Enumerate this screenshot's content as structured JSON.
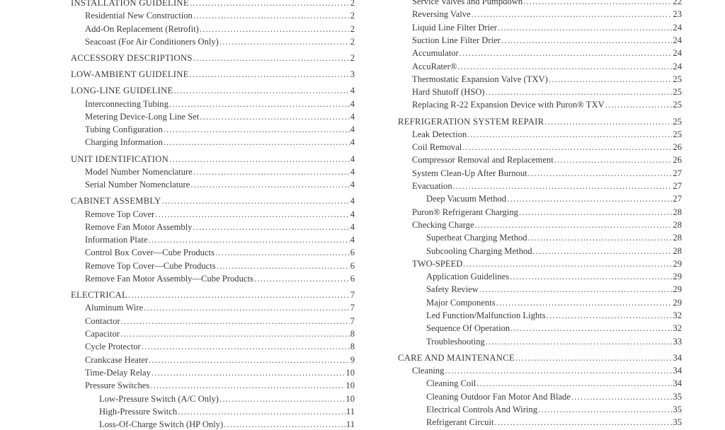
{
  "toc": {
    "left": [
      {
        "level": 1,
        "title": "INSTALLATION GUIDELINE",
        "page": "2"
      },
      {
        "level": 2,
        "title": "Residential New Construction",
        "page": "2"
      },
      {
        "level": 2,
        "title": "Add-On Replacement (Retrofit)",
        "page": "2"
      },
      {
        "level": 2,
        "title": "Seacoast (For Air Conditioners Only)",
        "page": "2"
      },
      {
        "level": 1,
        "title": "ACCESSORY DESCRIPTIONS",
        "page": "2"
      },
      {
        "level": 1,
        "title": "LOW-AMBIENT GUIDELINE",
        "page": "3"
      },
      {
        "level": 1,
        "title": "LONG-LINE GUIDELINE",
        "page": "4"
      },
      {
        "level": 2,
        "title": "Interconnecting Tubing",
        "page": "4"
      },
      {
        "level": 2,
        "title": "Metering Device-Long Line Set",
        "page": "4"
      },
      {
        "level": 2,
        "title": "Tubing Configuration",
        "page": "4"
      },
      {
        "level": 2,
        "title": "Charging Information",
        "page": "4"
      },
      {
        "level": 1,
        "title": "UNIT IDENTIFICATION",
        "page": "4"
      },
      {
        "level": 2,
        "title": "Model Number Nomenclature",
        "page": "4"
      },
      {
        "level": 2,
        "title": "Serial Number Nomenclature",
        "page": "4"
      },
      {
        "level": 1,
        "title": "CABINET ASSEMBLY",
        "page": "4"
      },
      {
        "level": 2,
        "title": "Remove Top Cover",
        "page": "4"
      },
      {
        "level": 2,
        "title": "Remove Fan Motor Assembly",
        "page": "4"
      },
      {
        "level": 2,
        "title": "Information Plate",
        "page": "4"
      },
      {
        "level": 2,
        "title": "Control Box Cover—Cube Products",
        "page": "6"
      },
      {
        "level": 2,
        "title": "Remove Top Cover—Cube Products",
        "page": "6"
      },
      {
        "level": 2,
        "title": "Remove Fan Motor Assembly—Cube Products",
        "page": "6"
      },
      {
        "level": 1,
        "title": "ELECTRICAL",
        "page": "7"
      },
      {
        "level": 2,
        "title": "Aluminum Wire",
        "page": "7"
      },
      {
        "level": 2,
        "title": "Contactor",
        "page": "7"
      },
      {
        "level": 2,
        "title": "Capacitor",
        "page": "8"
      },
      {
        "level": 2,
        "title": "Cycle Protector",
        "page": "8"
      },
      {
        "level": 2,
        "title": "Crankcase Heater",
        "page": "9"
      },
      {
        "level": 2,
        "title": "Time-Delay Relay",
        "page": "10"
      },
      {
        "level": 2,
        "title": "Pressure Switches",
        "page": "10"
      },
      {
        "level": 3,
        "title": "Low-Pressure Switch (A/C Only)",
        "page": "10"
      },
      {
        "level": 3,
        "title": "High-Pressure Switch",
        "page": "11"
      },
      {
        "level": 3,
        "title": "Loss-Of-Charge Switch (HP Only)",
        "page": "11"
      }
    ],
    "right": [
      {
        "level": 2,
        "title": "Service Valves and Pumpdown",
        "page": "22"
      },
      {
        "level": 2,
        "title": "Reversing Valve",
        "page": "23"
      },
      {
        "level": 2,
        "title": "Liquid Line Filter Drier",
        "page": "24"
      },
      {
        "level": 2,
        "title": "Suction Line Filter Drier",
        "page": "24"
      },
      {
        "level": 2,
        "title": "Accumulator",
        "page": "24"
      },
      {
        "level": 2,
        "title": "AccuRater®",
        "page": "24"
      },
      {
        "level": 2,
        "title": "Thermostatic Expansion Valve (TXV)",
        "page": "25"
      },
      {
        "level": 2,
        "title": "Hard Shutoff (HSO)",
        "page": "25"
      },
      {
        "level": 2,
        "title": "Replacing R-22 Expansion Device with Puron® TXV",
        "page": "25"
      },
      {
        "level": 1,
        "title": "REFRIGERATION SYSTEM REPAIR",
        "page": "25"
      },
      {
        "level": 2,
        "title": "Leak Detection",
        "page": "25"
      },
      {
        "level": 2,
        "title": "Coil Removal",
        "page": "26"
      },
      {
        "level": 2,
        "title": "Compressor Removal and Replacement",
        "page": "26"
      },
      {
        "level": 2,
        "title": "System Clean-Up After Burnout",
        "page": "27"
      },
      {
        "level": 2,
        "title": "Evacuation",
        "page": "27"
      },
      {
        "level": 3,
        "title": "Deep Vacuum Method",
        "page": "27"
      },
      {
        "level": 2,
        "title": "Puron® Refrigerant Charging",
        "page": "28"
      },
      {
        "level": 2,
        "title": "Checking Charge",
        "page": "28"
      },
      {
        "level": 3,
        "title": "Superheat Charging Method",
        "page": "28"
      },
      {
        "level": 3,
        "title": "Subcooling Charging Method",
        "page": "28"
      },
      {
        "level": 2,
        "title": "TWO-SPEED",
        "page": "29"
      },
      {
        "level": 3,
        "title": "Application Guidelines",
        "page": "29"
      },
      {
        "level": 3,
        "title": "Safety Review",
        "page": "29"
      },
      {
        "level": 3,
        "title": "Major Components",
        "page": "29"
      },
      {
        "level": 3,
        "title": "Led Function/Malfunction Lights",
        "page": "32"
      },
      {
        "level": 3,
        "title": "Sequence Of Operation",
        "page": "32"
      },
      {
        "level": 3,
        "title": "Troubleshooting",
        "page": "33"
      },
      {
        "level": 1,
        "title": "CARE AND MAINTENANCE",
        "page": "34"
      },
      {
        "level": 2,
        "title": "Cleaning",
        "page": "34"
      },
      {
        "level": 3,
        "title": "Cleaning Coil",
        "page": "34"
      },
      {
        "level": 3,
        "title": "Cleaning Outdoor Fan Motor And Blade",
        "page": "35"
      },
      {
        "level": 3,
        "title": "Electrical Controls And Wiring",
        "page": "35"
      },
      {
        "level": 3,
        "title": "Refrigerant Circuit",
        "page": "35"
      }
    ]
  }
}
